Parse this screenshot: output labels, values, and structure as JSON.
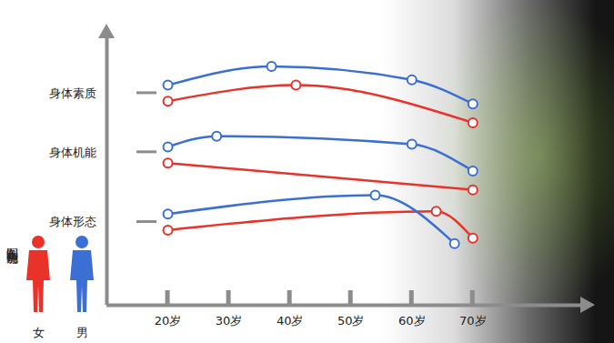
{
  "chart_data": {
    "type": "line",
    "credit": "制图 俞晓翔",
    "xlim": [
      10,
      88
    ],
    "xticks": [
      {
        "value": 20,
        "label": "20岁"
      },
      {
        "value": 30,
        "label": "30岁"
      },
      {
        "value": 40,
        "label": "40岁"
      },
      {
        "value": 50,
        "label": "50岁"
      },
      {
        "value": 60,
        "label": "60岁"
      },
      {
        "value": 70,
        "label": "70岁"
      }
    ],
    "ylim": [
      0,
      100
    ],
    "yticks": [
      {
        "value": 79,
        "label": "身体素质"
      },
      {
        "value": 57,
        "label": "身体机能"
      },
      {
        "value": 31,
        "label": "身体形态"
      }
    ],
    "grid": false,
    "legend": "bottom-left",
    "series": [
      {
        "name": "女",
        "color": "#e8322a",
        "marker": "circle",
        "segments": [
          {
            "x": [
              20,
              41,
              70
            ],
            "values": [
              76,
              82,
              68
            ]
          },
          {
            "x": [
              20,
              70
            ],
            "values": [
              53,
              43
            ]
          },
          {
            "x": [
              20,
              64,
              70
            ],
            "values": [
              28,
              35,
              25
            ]
          }
        ]
      },
      {
        "name": "男",
        "color": "#3b6fd4",
        "marker": "circle",
        "segments": [
          {
            "x": [
              20,
              37,
              60,
              70
            ],
            "values": [
              82,
              89,
              84,
              75
            ]
          },
          {
            "x": [
              20,
              28,
              60,
              70
            ],
            "values": [
              59,
              63,
              60,
              50
            ]
          },
          {
            "x": [
              20,
              54,
              67
            ],
            "values": [
              34,
              41,
              23
            ]
          }
        ]
      }
    ]
  }
}
